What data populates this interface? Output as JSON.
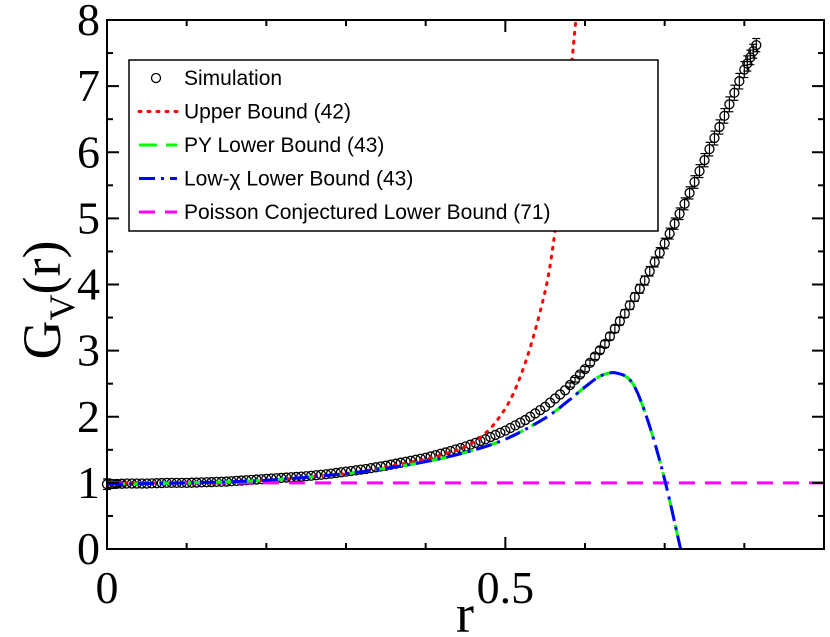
{
  "chart_data": {
    "type": "line",
    "title": "",
    "xlabel": "r",
    "ylabel": "G",
    "ylabel_subscript": "V",
    "ylabel_suffix": "(r)",
    "xlim": [
      0,
      0.9
    ],
    "ylim": [
      0,
      8
    ],
    "x_ticks": [
      {
        "value": 0,
        "label": "0"
      },
      {
        "value": 0.5,
        "label": "0.5"
      }
    ],
    "y_ticks": [
      {
        "value": 0,
        "label": "0"
      },
      {
        "value": 1,
        "label": "1"
      },
      {
        "value": 2,
        "label": "2"
      },
      {
        "value": 3,
        "label": "3"
      },
      {
        "value": 4,
        "label": "4"
      },
      {
        "value": 5,
        "label": "5"
      },
      {
        "value": 6,
        "label": "6"
      },
      {
        "value": 7,
        "label": "7"
      },
      {
        "value": 8,
        "label": "8"
      }
    ],
    "legend_position": "top-left",
    "series": [
      {
        "name": "Simulation",
        "legend_label": "Simulation",
        "style": "markers",
        "marker": "open-circle",
        "color": "#000000",
        "x": [
          0.0,
          0.025,
          0.05,
          0.075,
          0.1,
          0.125,
          0.15,
          0.175,
          0.2,
          0.225,
          0.25,
          0.275,
          0.3,
          0.325,
          0.35,
          0.375,
          0.4,
          0.425,
          0.45,
          0.475,
          0.5,
          0.525,
          0.55,
          0.575,
          0.6,
          0.625,
          0.65,
          0.675,
          0.7,
          0.725,
          0.75,
          0.775,
          0.8,
          0.815
        ],
        "y": [
          0.98,
          0.99,
          0.99,
          1.0,
          1.0,
          1.01,
          1.02,
          1.04,
          1.06,
          1.08,
          1.1,
          1.13,
          1.17,
          1.21,
          1.26,
          1.32,
          1.38,
          1.46,
          1.55,
          1.66,
          1.79,
          1.95,
          2.15,
          2.4,
          2.72,
          3.1,
          3.56,
          4.06,
          4.62,
          5.22,
          5.88,
          6.55,
          7.25,
          7.62
        ],
        "error": [
          0.08,
          0.02,
          0.02,
          0.02,
          0.02,
          0.02,
          0.02,
          0.02,
          0.02,
          0.02,
          0.02,
          0.02,
          0.02,
          0.02,
          0.02,
          0.02,
          0.02,
          0.02,
          0.02,
          0.02,
          0.02,
          0.03,
          0.03,
          0.03,
          0.04,
          0.05,
          0.06,
          0.07,
          0.08,
          0.09,
          0.1,
          0.11,
          0.12,
          0.1
        ]
      },
      {
        "name": "Upper Bound",
        "legend_label": "Upper Bound (42)",
        "style": "dotted",
        "color": "#ff0000",
        "x": [
          0.0,
          0.1,
          0.2,
          0.3,
          0.35,
          0.4,
          0.43,
          0.45,
          0.47,
          0.49,
          0.51,
          0.53,
          0.55,
          0.56,
          0.57,
          0.58,
          0.59
        ],
        "y": [
          1.0,
          1.0,
          1.04,
          1.14,
          1.24,
          1.36,
          1.46,
          1.55,
          1.7,
          1.95,
          2.35,
          3.0,
          3.9,
          4.6,
          5.6,
          6.9,
          8.2
        ]
      },
      {
        "name": "PY Lower Bound",
        "legend_label": "PY Lower Bound (43)",
        "style": "long-dash",
        "color": "#00ff00",
        "x": [
          0.0,
          0.1,
          0.2,
          0.3,
          0.35,
          0.4,
          0.45,
          0.5,
          0.55,
          0.58,
          0.6,
          0.62,
          0.64,
          0.66,
          0.68,
          0.7,
          0.72
        ],
        "y": [
          0.98,
          1.0,
          1.04,
          1.14,
          1.22,
          1.32,
          1.46,
          1.66,
          1.98,
          2.25,
          2.45,
          2.62,
          2.66,
          2.5,
          1.9,
          1.05,
          0.0
        ]
      },
      {
        "name": "Low-chi Lower Bound",
        "legend_label": "Low-χ Lower Bound (43)",
        "style": "dash-dot",
        "color": "#0000ff",
        "x": [
          0.0,
          0.1,
          0.2,
          0.3,
          0.35,
          0.4,
          0.45,
          0.5,
          0.55,
          0.58,
          0.6,
          0.62,
          0.64,
          0.66,
          0.68,
          0.7,
          0.72
        ],
        "y": [
          0.98,
          1.0,
          1.04,
          1.14,
          1.22,
          1.32,
          1.46,
          1.66,
          1.98,
          2.25,
          2.45,
          2.62,
          2.66,
          2.5,
          1.9,
          1.05,
          0.0
        ]
      },
      {
        "name": "Poisson Conjectured Lower Bound",
        "legend_label": "Poisson Conjectured Lower Bound (71)",
        "style": "dashed",
        "color": "#ff00ff",
        "x": [
          0.0,
          0.9
        ],
        "y": [
          1.0,
          1.0
        ]
      }
    ]
  }
}
